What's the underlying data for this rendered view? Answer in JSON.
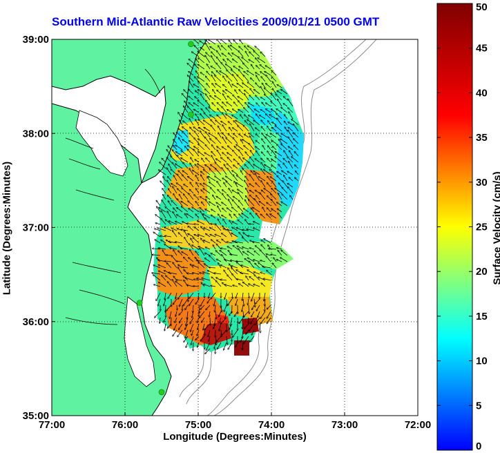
{
  "chart_data": {
    "type": "heatmap",
    "title": "Southern Mid-Atlantic Raw Velocities 2009/01/21 0500 GMT",
    "xlabel": "Longitude (Degrees:Minutes)",
    "ylabel": "Latitude (Degrees:Minutes)",
    "x_ticks": [
      "77:00",
      "76:00",
      "75:00",
      "74:00",
      "73:00",
      "72:00"
    ],
    "y_ticks": [
      "39:00",
      "38:00",
      "37:00",
      "36:00",
      "35:00"
    ],
    "xlim": [
      -77,
      -72
    ],
    "ylim": [
      35,
      39
    ],
    "grid": true,
    "colorbar": {
      "label": "Surface Velocity (cm/s)",
      "range": [
        0,
        50
      ],
      "ticks": [
        "0",
        "5",
        "10",
        "15",
        "20",
        "25",
        "30",
        "35",
        "40",
        "45",
        "50"
      ],
      "colormap": "jet"
    },
    "field_estimate": {
      "note": "estimated surface speed (cm/s) sampled on a lon/lat grid inside the coverage area",
      "samples": [
        {
          "lon": -74.9,
          "lat": 38.8,
          "speed": 24
        },
        {
          "lon": -74.5,
          "lat": 38.7,
          "speed": 22
        },
        {
          "lon": -74.1,
          "lat": 38.5,
          "speed": 20
        },
        {
          "lon": -74.3,
          "lat": 38.2,
          "speed": 13
        },
        {
          "lon": -73.8,
          "lat": 38.0,
          "speed": 12
        },
        {
          "lon": -73.8,
          "lat": 37.6,
          "speed": 13
        },
        {
          "lon": -75.1,
          "lat": 38.3,
          "speed": 26
        },
        {
          "lon": -75.4,
          "lat": 37.9,
          "speed": 22
        },
        {
          "lon": -75.2,
          "lat": 37.6,
          "speed": 30
        },
        {
          "lon": -74.6,
          "lat": 37.5,
          "speed": 26
        },
        {
          "lon": -74.2,
          "lat": 37.4,
          "speed": 33
        },
        {
          "lon": -75.3,
          "lat": 37.2,
          "speed": 28
        },
        {
          "lon": -74.9,
          "lat": 37.0,
          "speed": 24
        },
        {
          "lon": -75.5,
          "lat": 36.7,
          "speed": 32
        },
        {
          "lon": -75.0,
          "lat": 36.6,
          "speed": 25
        },
        {
          "lon": -74.4,
          "lat": 36.6,
          "speed": 18
        },
        {
          "lon": -75.3,
          "lat": 36.3,
          "speed": 30
        },
        {
          "lon": -74.8,
          "lat": 36.2,
          "speed": 34
        },
        {
          "lon": -74.3,
          "lat": 36.2,
          "speed": 27
        },
        {
          "lon": -75.0,
          "lat": 35.95,
          "speed": 38
        },
        {
          "lon": -74.35,
          "lat": 35.9,
          "speed": 45
        },
        {
          "lon": -74.45,
          "lat": 35.7,
          "speed": 50
        }
      ]
    },
    "markers": [
      {
        "type": "hf-radar-site",
        "lon": -75.1,
        "lat": 38.95,
        "color": "#22cc22"
      },
      {
        "type": "hf-radar-site",
        "lon": -75.1,
        "lat": 38.2,
        "color": "#22cc22"
      },
      {
        "type": "hf-radar-site",
        "lon": -75.8,
        "lat": 36.2,
        "color": "#22cc22"
      },
      {
        "type": "hf-radar-site",
        "lon": -75.5,
        "lat": 35.25,
        "color": "#22cc22"
      }
    ],
    "land_color": "#5ff2a0",
    "coast_color": "#000000",
    "bathymetry_color": "#8c8c8c"
  }
}
